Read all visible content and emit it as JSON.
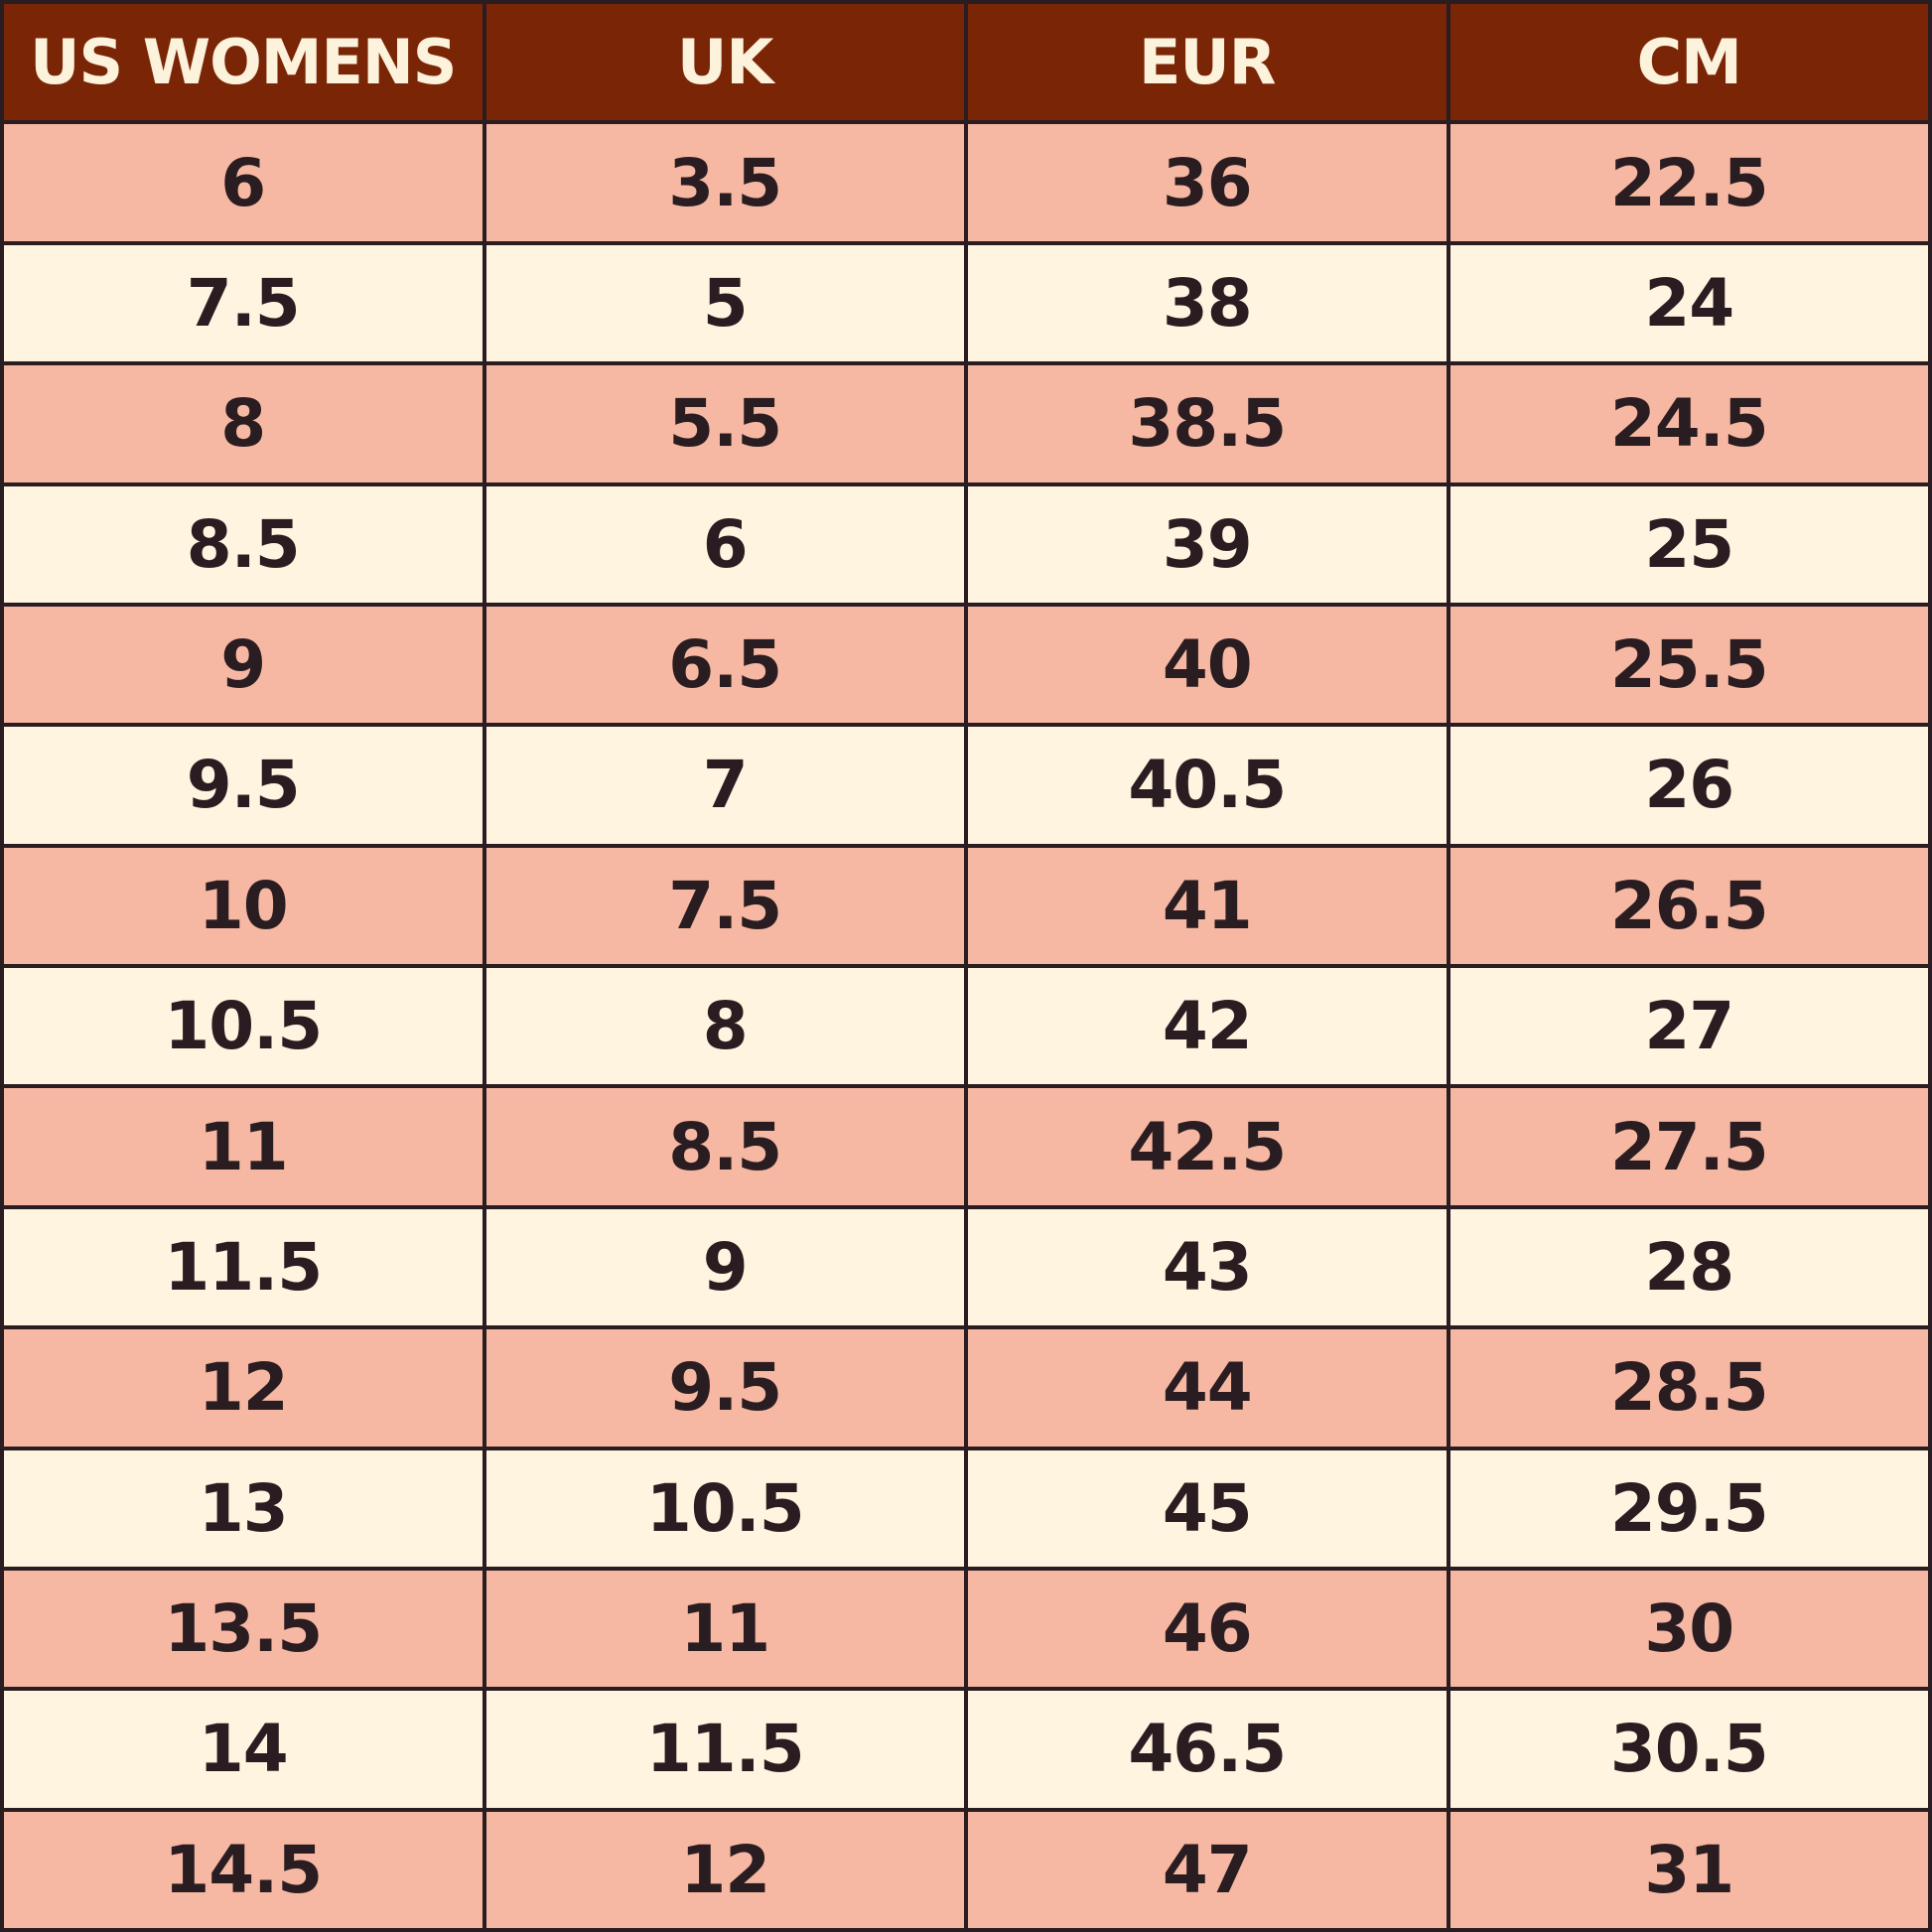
{
  "table": {
    "header": [
      "US WOMENS",
      "UK",
      "EUR",
      "CM"
    ],
    "rows": [
      [
        "6",
        "3.5",
        "36",
        "22.5"
      ],
      [
        "7.5",
        "5",
        "38",
        "24"
      ],
      [
        "8",
        "5.5",
        "38.5",
        "24.5"
      ],
      [
        "8.5",
        "6",
        "39",
        "25"
      ],
      [
        "9",
        "6.5",
        "40",
        "25.5"
      ],
      [
        "9.5",
        "7",
        "40.5",
        "26"
      ],
      [
        "10",
        "7.5",
        "41",
        "26.5"
      ],
      [
        "10.5",
        "8",
        "42",
        "27"
      ],
      [
        "11",
        "8.5",
        "42.5",
        "27.5"
      ],
      [
        "11.5",
        "9",
        "43",
        "28"
      ],
      [
        "12",
        "9.5",
        "44",
        "28.5"
      ],
      [
        "13",
        "10.5",
        "45",
        "29.5"
      ],
      [
        "13.5",
        "11",
        "46",
        "30"
      ],
      [
        "14",
        "11.5",
        "46.5",
        "30.5"
      ],
      [
        "14.5",
        "12",
        "47",
        "31"
      ]
    ]
  }
}
